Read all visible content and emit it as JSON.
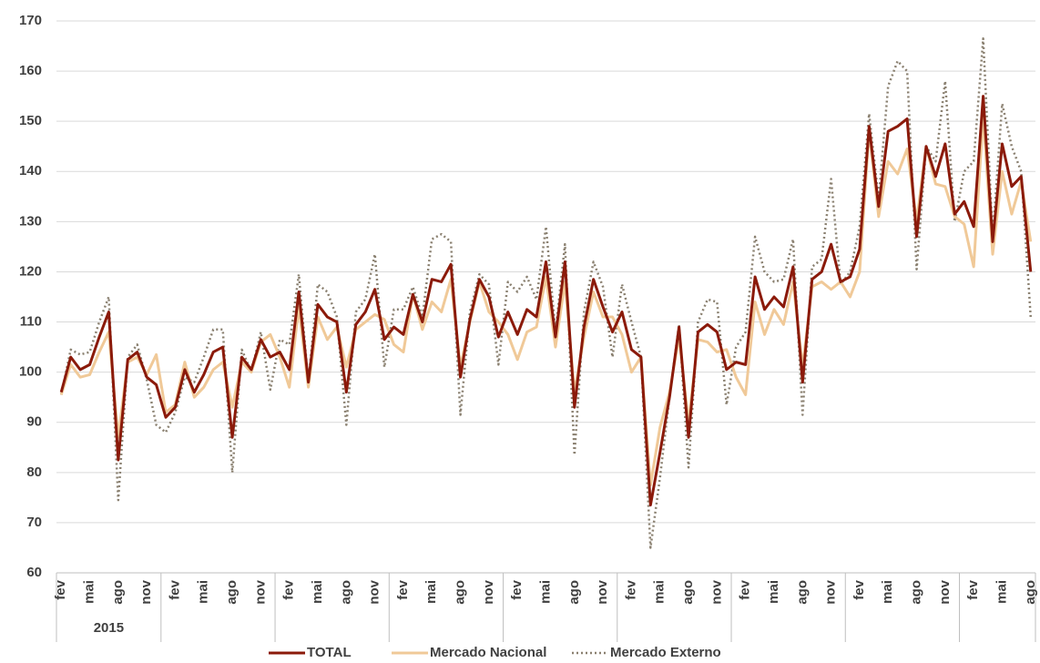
{
  "chart_data": {
    "type": "line",
    "categories": [
      "fev",
      null,
      null,
      "mai",
      null,
      null,
      "ago",
      null,
      null,
      "nov",
      null,
      null,
      "fev",
      null,
      null,
      "mai",
      null,
      null,
      "ago",
      null,
      null,
      "nov",
      null,
      null,
      "fev",
      null,
      null,
      "mai",
      null,
      null,
      "ago",
      null,
      null,
      "nov",
      null,
      null,
      "fev",
      null,
      null,
      "mai",
      null,
      null,
      "ago",
      null,
      null,
      "nov",
      null,
      null,
      "fev",
      null,
      null,
      "mai",
      null,
      null,
      "ago",
      null,
      null,
      "nov",
      null,
      null,
      "fev",
      null,
      null,
      "mai",
      null,
      null,
      "ago",
      null,
      null,
      "nov",
      null,
      null,
      "fev",
      null,
      null,
      "mai",
      null,
      null,
      "ago",
      null,
      null,
      "nov",
      null,
      null,
      "fev",
      null,
      null,
      "mai",
      null,
      null,
      "ago",
      null,
      null,
      "nov",
      null,
      null,
      "fev",
      null,
      null,
      "mai",
      null,
      null,
      "ago"
    ],
    "group_label": "2015",
    "series": [
      {
        "name": "TOTAL",
        "color": "#8b1a0a",
        "style": "solid",
        "values": [
          96,
          103,
          100.5,
          101.5,
          107,
          112,
          82.5,
          102.5,
          104,
          99,
          97.5,
          91,
          93,
          100.5,
          96,
          99.5,
          104,
          105,
          87,
          103,
          100.5,
          106.5,
          103,
          104,
          100.5,
          116,
          98,
          113.5,
          111,
          110,
          96,
          109.5,
          112,
          116.5,
          106.5,
          109,
          107.5,
          115.5,
          110,
          118.5,
          118,
          121.5,
          99,
          110.5,
          118.5,
          115,
          107,
          112,
          107.5,
          112.5,
          111,
          122,
          107,
          122,
          93,
          109,
          118.5,
          113,
          108,
          112,
          104.5,
          103,
          73.5,
          84,
          95,
          109,
          87,
          108,
          109.5,
          108,
          100.5,
          102,
          101.5,
          119,
          112.5,
          115,
          113,
          121,
          98,
          118.5,
          120,
          125.5,
          118,
          119,
          124.5,
          149,
          133,
          148,
          149,
          150.5,
          127,
          145,
          139,
          145.5,
          131.5,
          134,
          129,
          155,
          126,
          145.5,
          137,
          139,
          120
        ]
      },
      {
        "name": "Mercado Nacional",
        "color": "#f0c998",
        "style": "solid",
        "values": [
          95.5,
          101.5,
          99,
          99.5,
          104,
          108,
          87,
          102,
          103,
          99.5,
          103.5,
          92,
          93.5,
          102,
          95,
          97,
          100.5,
          102,
          93,
          102,
          100,
          106,
          107.5,
          103,
          97,
          113,
          97,
          111,
          106.5,
          109,
          101,
          108.5,
          110,
          111.5,
          110.5,
          105.5,
          104,
          115.5,
          108.5,
          114,
          112,
          118.5,
          101,
          110,
          118,
          112,
          110,
          107.5,
          102.5,
          108,
          109,
          119,
          105,
          118,
          96,
          107,
          116,
          111,
          111,
          107.5,
          100,
          103,
          77.5,
          89,
          96,
          107,
          90,
          106.5,
          106,
          104,
          104.5,
          99,
          95.5,
          114,
          107.5,
          112.5,
          109.5,
          118,
          101,
          117,
          118,
          116.5,
          118,
          115,
          120,
          148,
          131,
          142,
          139.5,
          144.5,
          130,
          145,
          137.5,
          137,
          131,
          129.5,
          121,
          151,
          123.5,
          140,
          131.5,
          138,
          126
        ]
      },
      {
        "name": "Mercado Externo",
        "color": "#8a8070",
        "style": "dotted",
        "values": [
          95.5,
          104.5,
          103.5,
          104,
          110,
          115,
          74.5,
          103,
          105.5,
          98.5,
          89.5,
          88,
          92,
          99,
          98,
          103,
          108.5,
          108.5,
          80,
          104.5,
          100,
          108,
          96.5,
          106.5,
          105.5,
          119.5,
          98,
          117.5,
          116,
          111,
          89.5,
          112,
          114.5,
          123.5,
          101,
          112.5,
          112.5,
          117,
          111,
          126.5,
          127.5,
          126,
          91.5,
          112,
          119.5,
          117.5,
          101.5,
          118,
          116,
          119,
          114.5,
          129,
          108,
          125.5,
          83.5,
          112,
          122,
          117,
          103,
          117.5,
          110,
          103,
          65,
          79,
          95,
          109.5,
          81,
          110,
          114.5,
          114,
          93.5,
          105,
          108,
          127,
          120,
          118,
          118.5,
          126.5,
          91.5,
          121,
          122.5,
          138.5,
          117.5,
          120,
          129,
          151.5,
          134.5,
          157,
          162,
          160,
          120.5,
          145,
          142,
          158,
          130,
          140,
          142,
          166.5,
          127,
          153.5,
          145,
          140,
          111
        ]
      }
    ],
    "ylim": [
      60,
      170
    ],
    "yticks": [
      60,
      70,
      80,
      90,
      100,
      110,
      120,
      130,
      140,
      150,
      160,
      170
    ],
    "grid": true,
    "legend": "bottom"
  }
}
